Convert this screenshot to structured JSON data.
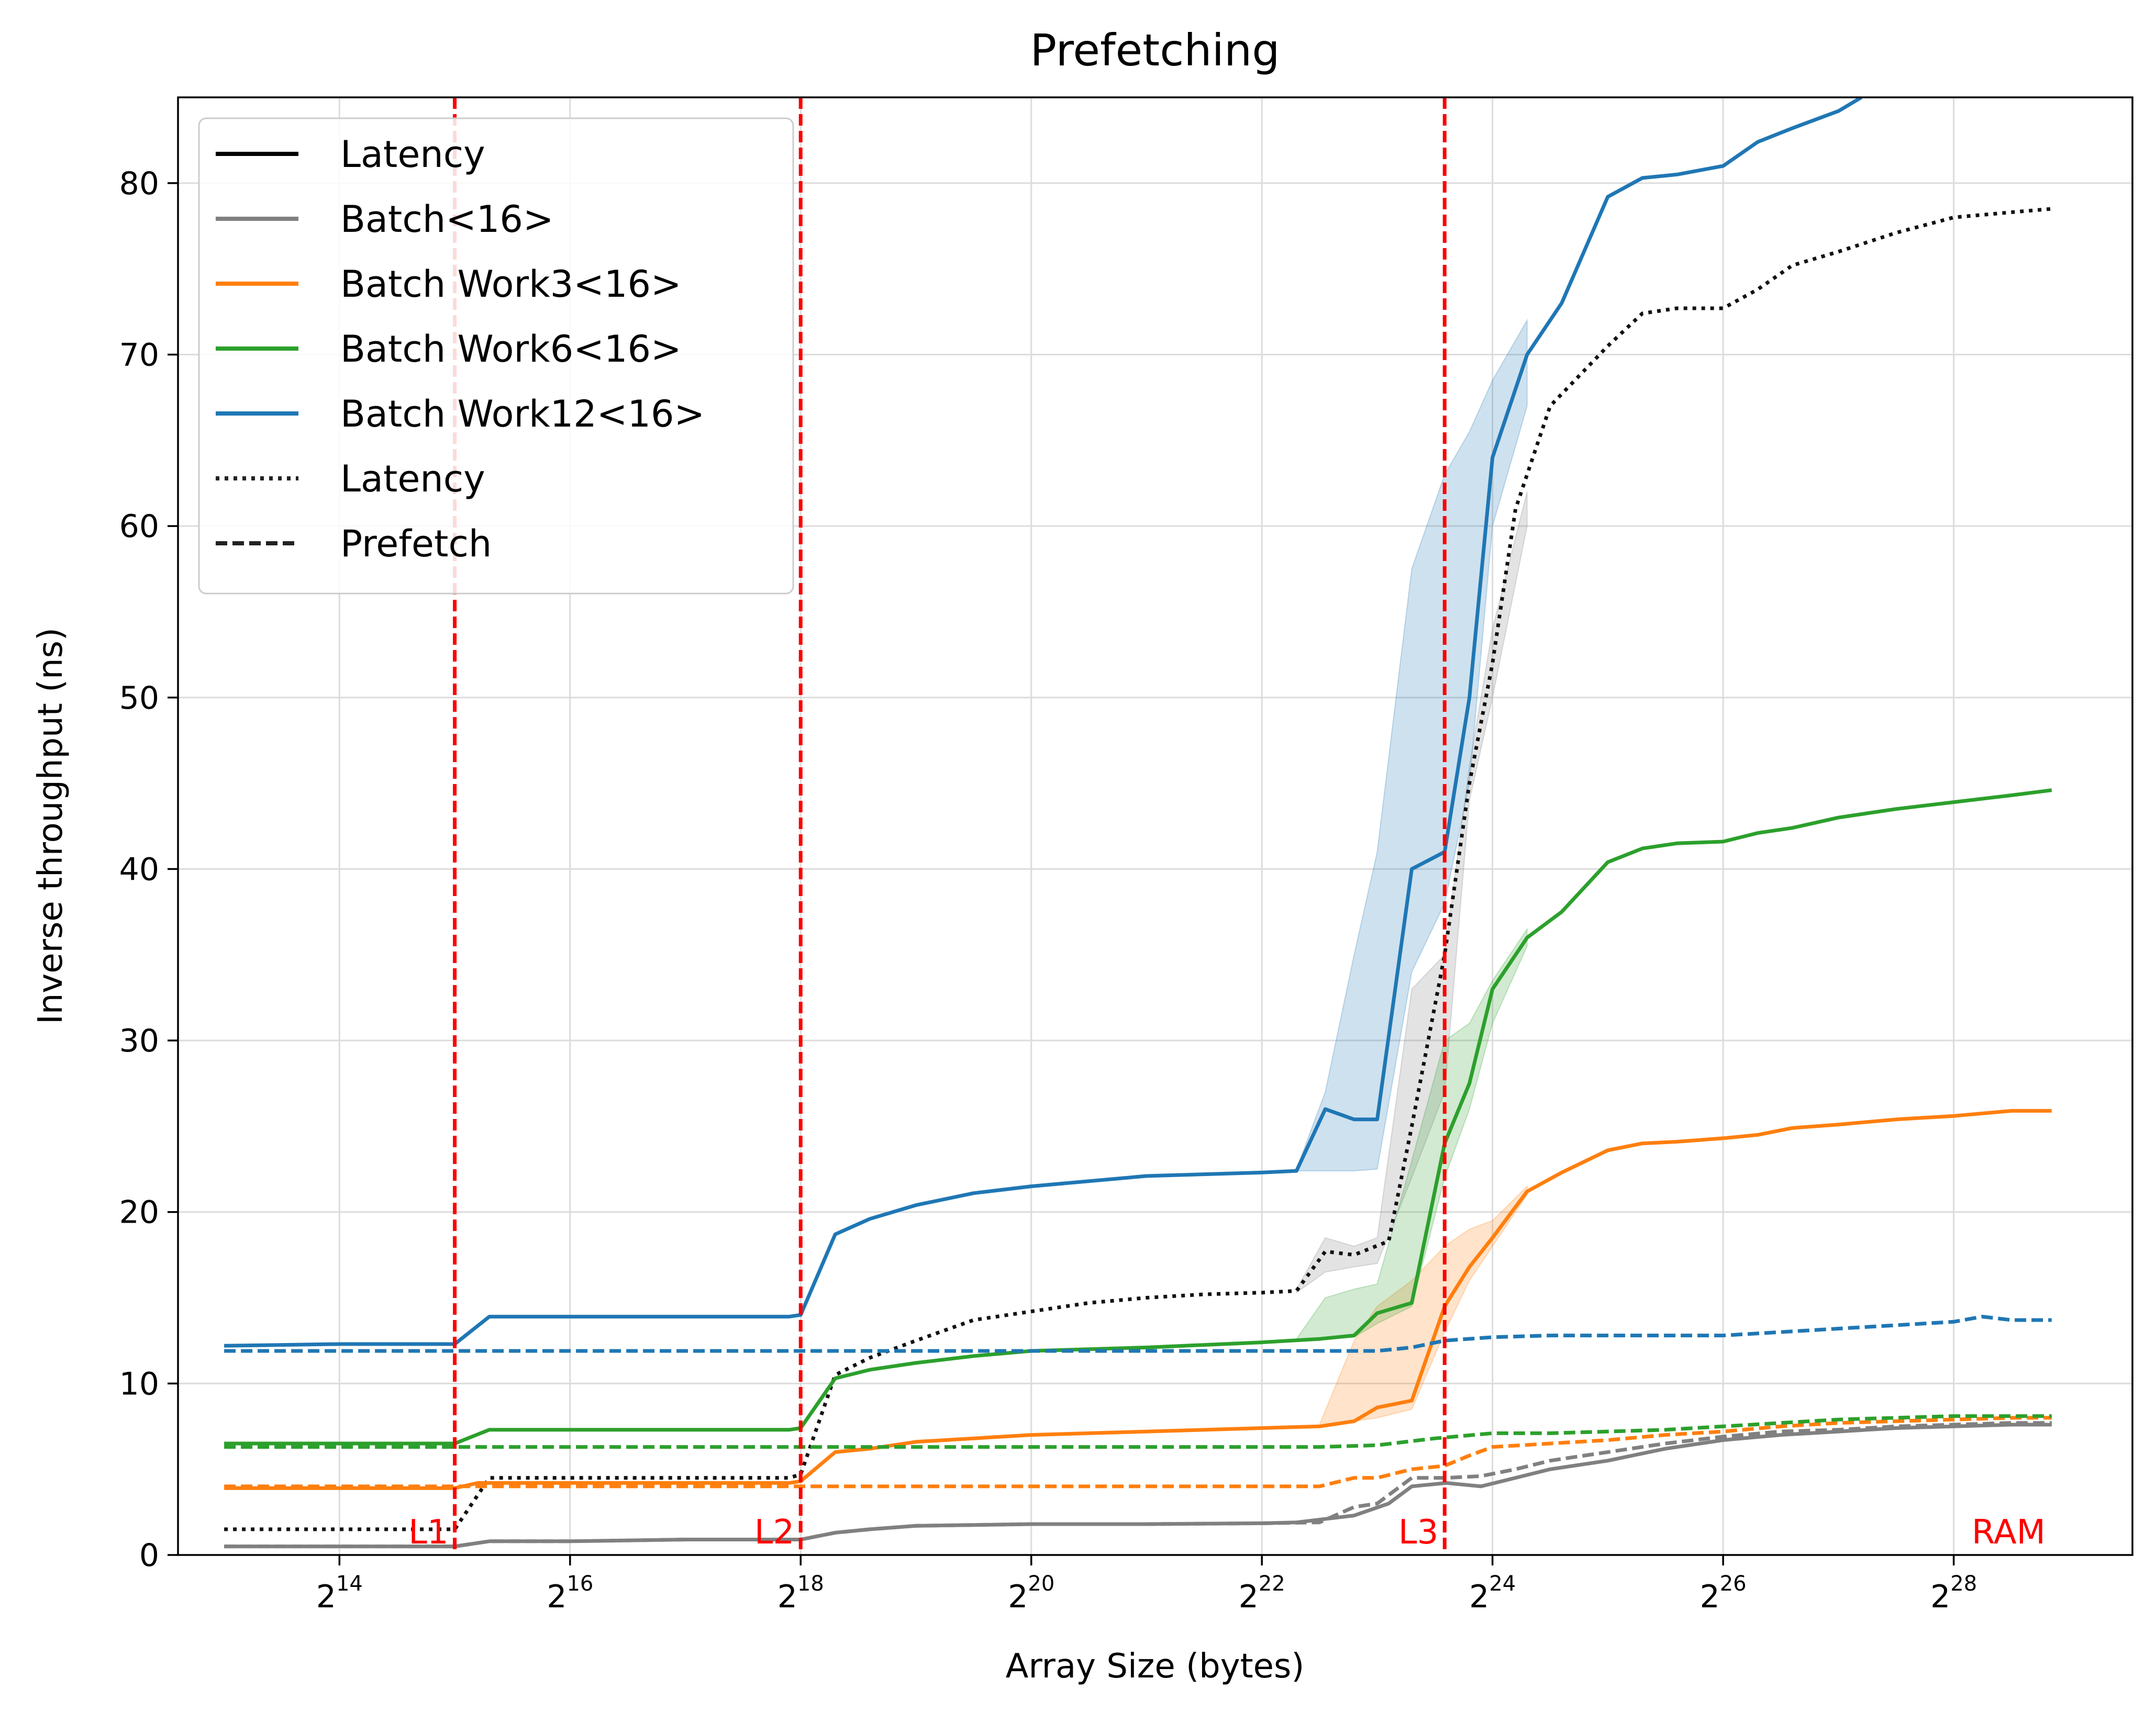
{
  "chart_data": {
    "type": "line",
    "title": "Prefetching",
    "xlabel": "Array Size (bytes)",
    "ylabel": "Inverse throughput (ns)",
    "x_scale": "log2",
    "xlim": [
      12.6,
      29.55
    ],
    "ylim": [
      0,
      85
    ],
    "x_ticks": [
      {
        "base": "2",
        "exp": "14",
        "value": 14
      },
      {
        "base": "2",
        "exp": "16",
        "value": 16
      },
      {
        "base": "2",
        "exp": "18",
        "value": 18
      },
      {
        "base": "2",
        "exp": "20",
        "value": 20
      },
      {
        "base": "2",
        "exp": "22",
        "value": 22
      },
      {
        "base": "2",
        "exp": "24",
        "value": 24
      },
      {
        "base": "2",
        "exp": "26",
        "value": 26
      },
      {
        "base": "2",
        "exp": "28",
        "value": 28
      }
    ],
    "y_ticks": [
      {
        "label": "0",
        "value": 0
      },
      {
        "label": "10",
        "value": 10
      },
      {
        "label": "20",
        "value": 20
      },
      {
        "label": "30",
        "value": 30
      },
      {
        "label": "40",
        "value": 40
      },
      {
        "label": "50",
        "value": 50
      },
      {
        "label": "60",
        "value": 60
      },
      {
        "label": "70",
        "value": 70
      },
      {
        "label": "80",
        "value": 80
      }
    ],
    "grid": true,
    "legend_position": "top-left",
    "legend": [
      {
        "label": "Latency",
        "color": "#000000",
        "style": "solid"
      },
      {
        "label": "Batch<16>",
        "color": "#808080",
        "style": "solid"
      },
      {
        "label": "Batch Work3<16>",
        "color": "#ff7f0e",
        "style": "solid"
      },
      {
        "label": "Batch Work6<16>",
        "color": "#2ca02c",
        "style": "solid"
      },
      {
        "label": "Batch Work12<16>",
        "color": "#1f77b4",
        "style": "solid"
      },
      {
        "label": "Latency",
        "color": "#222222",
        "style": "dotted"
      },
      {
        "label": "Prefetch",
        "color": "#222222",
        "style": "dashed"
      }
    ],
    "cache_lines": [
      {
        "label": "L1",
        "x": 15,
        "label_anchor": "end"
      },
      {
        "label": "L2",
        "x": 18,
        "label_anchor": "end"
      },
      {
        "label": "L3",
        "x": 23.585,
        "label_anchor": "end"
      },
      {
        "label": "RAM",
        "x": 28.85,
        "label_anchor": "end",
        "no_line": true
      }
    ],
    "cache_line_color": "#ff0000",
    "series": [
      {
        "legend_ref": "Latency",
        "color": "#111111",
        "style": "dotted",
        "x": [
          13,
          14,
          14.5,
          15,
          15.3,
          16,
          17,
          17.9,
          18,
          18.3,
          18.6,
          19,
          19.5,
          20,
          20.5,
          21,
          21.5,
          22,
          22.3,
          22.55,
          22.8,
          23.1,
          23.3,
          23.585,
          23.8,
          24,
          24.2,
          24.5,
          25,
          25.3,
          25.6,
          26,
          26.3,
          26.6,
          27,
          27.5,
          28,
          28.5,
          28.85
        ],
        "y": [
          1.5,
          1.5,
          1.5,
          1.5,
          4.5,
          4.5,
          4.5,
          4.5,
          4.7,
          10.5,
          11.5,
          12.5,
          13.7,
          14.2,
          14.7,
          15.0,
          15.2,
          15.3,
          15.4,
          17.7,
          17.5,
          18.3,
          25,
          35,
          45,
          52,
          61,
          67,
          70.5,
          72.4,
          72.7,
          72.7,
          73.8,
          75.2,
          76.0,
          77.1,
          78.0,
          78.3,
          78.5
        ]
      },
      {
        "legend_ref": "Batch<16>",
        "color": "#808080",
        "style": "solid",
        "x": [
          13,
          14,
          15,
          15.3,
          16,
          17,
          17.9,
          18,
          18.3,
          18.6,
          19,
          20,
          21,
          22,
          22.3,
          22.8,
          23.1,
          23.3,
          23.6,
          23.9,
          24.2,
          24.5,
          25,
          25.5,
          26,
          26.5,
          27,
          27.5,
          28,
          28.5,
          28.85
        ],
        "y": [
          0.5,
          0.5,
          0.5,
          0.8,
          0.8,
          0.9,
          0.9,
          0.9,
          1.3,
          1.5,
          1.7,
          1.8,
          1.8,
          1.85,
          1.9,
          2.3,
          3.0,
          4.0,
          4.2,
          4.0,
          4.5,
          5.0,
          5.5,
          6.2,
          6.7,
          7.0,
          7.2,
          7.4,
          7.5,
          7.6,
          7.6
        ]
      },
      {
        "legend_ref": "Batch Work3<16>",
        "color": "#ff7f0e",
        "style": "solid",
        "x": [
          13,
          14,
          15,
          15.2,
          16,
          17,
          17.9,
          18,
          18.3,
          18.6,
          19,
          19.5,
          20,
          21,
          22,
          22.5,
          22.8,
          23,
          23.3,
          23.585,
          23.8,
          24,
          24.3,
          24.6,
          25,
          25.3,
          25.6,
          26,
          26.3,
          26.6,
          27,
          27.5,
          28,
          28.5,
          28.85
        ],
        "y": [
          3.9,
          3.9,
          3.9,
          4.2,
          4.2,
          4.2,
          4.2,
          4.3,
          6.0,
          6.2,
          6.6,
          6.8,
          7.0,
          7.2,
          7.4,
          7.5,
          7.8,
          8.6,
          9.0,
          14.5,
          16.8,
          18.5,
          21.2,
          22.3,
          23.6,
          24.0,
          24.1,
          24.3,
          24.5,
          24.9,
          25.1,
          25.4,
          25.6,
          25.9,
          25.9
        ]
      },
      {
        "legend_ref": "Batch Work6<16>",
        "color": "#2ca02c",
        "style": "solid",
        "x": [
          13,
          14,
          15,
          15.3,
          16,
          17,
          17.9,
          18,
          18.3,
          18.6,
          19,
          19.5,
          20,
          21,
          22,
          22.5,
          22.8,
          23,
          23.3,
          23.585,
          23.8,
          24,
          24.3,
          24.6,
          25,
          25.3,
          25.6,
          26,
          26.3,
          26.6,
          27,
          27.5,
          28,
          28.5,
          28.85
        ],
        "y": [
          6.5,
          6.5,
          6.5,
          7.3,
          7.3,
          7.3,
          7.3,
          7.4,
          10.3,
          10.8,
          11.2,
          11.6,
          11.9,
          12.1,
          12.4,
          12.6,
          12.8,
          14.1,
          14.7,
          24,
          27.5,
          33,
          36,
          37.5,
          40.4,
          41.2,
          41.5,
          41.6,
          42.1,
          42.4,
          43.0,
          43.5,
          43.9,
          44.3,
          44.6
        ]
      },
      {
        "legend_ref": "Batch Work12<16>",
        "color": "#1f77b4",
        "style": "solid",
        "x": [
          13,
          14,
          15,
          15.3,
          16,
          17,
          17.9,
          18,
          18.3,
          18.6,
          19,
          19.5,
          20,
          21,
          22,
          22.3,
          22.55,
          22.8,
          23,
          23.3,
          23.585,
          23.8,
          24,
          24.3,
          24.6,
          25,
          25.3,
          25.6,
          26,
          26.3,
          26.6,
          27,
          27.2
        ],
        "y": [
          12.2,
          12.3,
          12.3,
          13.9,
          13.9,
          13.9,
          13.9,
          14.0,
          18.7,
          19.6,
          20.4,
          21.1,
          21.5,
          22.1,
          22.3,
          22.4,
          26,
          25.4,
          25.4,
          40,
          41,
          50,
          64,
          70,
          73,
          79.2,
          80.3,
          80.5,
          81.0,
          82.4,
          83.2,
          84.2,
          85
        ]
      },
      {
        "legend_ref": "Prefetch",
        "color": "#808080",
        "style": "dashed",
        "x": [
          13,
          14,
          15,
          15.3,
          16,
          17,
          18,
          18.3,
          18.6,
          19,
          20,
          21,
          22,
          22.5,
          22.8,
          23,
          23.3,
          23.6,
          23.9,
          24.2,
          24.5,
          25,
          25.5,
          26,
          26.5,
          27,
          27.5,
          28,
          28.5,
          28.85
        ],
        "y": [
          0.5,
          0.5,
          0.5,
          0.8,
          0.8,
          0.9,
          0.9,
          1.3,
          1.5,
          1.7,
          1.8,
          1.8,
          1.85,
          1.9,
          2.8,
          3.0,
          4.5,
          4.5,
          4.6,
          5.0,
          5.5,
          6.0,
          6.5,
          6.9,
          7.2,
          7.3,
          7.5,
          7.6,
          7.7,
          7.7
        ]
      },
      {
        "legend_ref": "Prefetch",
        "color": "#ff7f0e",
        "style": "dashed",
        "x": [
          13,
          14,
          15,
          15.3,
          16,
          17,
          18,
          19,
          20,
          21,
          22,
          22.5,
          22.8,
          23,
          23.3,
          23.585,
          23.8,
          24,
          24.5,
          25,
          25.5,
          26,
          26.5,
          27,
          27.5,
          28,
          28.5,
          28.85
        ],
        "y": [
          4.0,
          4.0,
          4.0,
          4.0,
          4.0,
          4.0,
          4.0,
          4.0,
          4.0,
          4.0,
          4.0,
          4.0,
          4.5,
          4.5,
          5.0,
          5.2,
          5.8,
          6.3,
          6.5,
          6.7,
          7.0,
          7.2,
          7.5,
          7.7,
          7.8,
          7.9,
          8.0,
          8.0
        ]
      },
      {
        "legend_ref": "Prefetch",
        "color": "#2ca02c",
        "style": "dashed",
        "x": [
          13,
          14,
          15,
          16,
          17,
          18,
          19,
          20,
          21,
          22,
          22.5,
          23,
          23.5,
          24,
          24.5,
          25,
          25.5,
          26,
          26.5,
          27,
          27.5,
          28,
          28.5,
          28.85
        ],
        "y": [
          6.3,
          6.3,
          6.3,
          6.3,
          6.3,
          6.3,
          6.3,
          6.3,
          6.3,
          6.3,
          6.3,
          6.4,
          6.8,
          7.1,
          7.1,
          7.2,
          7.3,
          7.5,
          7.7,
          7.9,
          8.0,
          8.1,
          8.1,
          8.1
        ]
      },
      {
        "legend_ref": "Prefetch",
        "color": "#1f77b4",
        "style": "dashed",
        "x": [
          13,
          14,
          15,
          16,
          17,
          18,
          19,
          20,
          21,
          22,
          22.5,
          23,
          23.3,
          23.585,
          24,
          24.5,
          25,
          25.5,
          26,
          26.5,
          27,
          27.5,
          28,
          28.25,
          28.5,
          28.85
        ],
        "y": [
          11.9,
          11.9,
          11.9,
          11.9,
          11.9,
          11.9,
          11.9,
          11.9,
          11.9,
          11.9,
          11.9,
          11.9,
          12.1,
          12.5,
          12.7,
          12.8,
          12.8,
          12.8,
          12.8,
          13.0,
          13.2,
          13.4,
          13.6,
          13.9,
          13.7,
          13.7
        ]
      }
    ],
    "bands": [
      {
        "color": "#1f77b4",
        "x": [
          22.3,
          22.55,
          22.8,
          23.0,
          23.3,
          23.585,
          23.8,
          24.0,
          24.3
        ],
        "lower": [
          22.4,
          22.4,
          22.4,
          22.5,
          34,
          38,
          45,
          60,
          67
        ],
        "upper": [
          22.5,
          27,
          35,
          41,
          57.5,
          63,
          65.5,
          68.5,
          72
        ]
      },
      {
        "color": "#808080",
        "x": [
          22.3,
          22.55,
          22.8,
          23.0,
          23.3,
          23.585,
          23.8,
          24.0,
          24.3
        ],
        "lower": [
          15.3,
          16.5,
          16.8,
          17.0,
          22,
          27,
          44,
          50,
          60
        ],
        "upper": [
          15.5,
          18.5,
          18.0,
          18.5,
          33,
          35,
          46,
          54,
          62
        ]
      },
      {
        "color": "#ff7f0e",
        "x": [
          22.5,
          22.8,
          23.0,
          23.3,
          23.585,
          23.8,
          24.0,
          24.3
        ],
        "lower": [
          7.5,
          7.8,
          8.0,
          8.5,
          13,
          16,
          18,
          21
        ],
        "upper": [
          7.6,
          12.5,
          14.5,
          16,
          18,
          19,
          19.5,
          21.5
        ]
      },
      {
        "color": "#2ca02c",
        "x": [
          22.3,
          22.55,
          22.8,
          23.0,
          23.3,
          23.585,
          23.8,
          24.0,
          24.3
        ],
        "lower": [
          12.5,
          12.6,
          12.7,
          13.5,
          14.5,
          22,
          26,
          31,
          35.5
        ],
        "upper": [
          12.6,
          15.0,
          15.5,
          15.8,
          23,
          30,
          31,
          33.5,
          36.5
        ]
      }
    ]
  }
}
